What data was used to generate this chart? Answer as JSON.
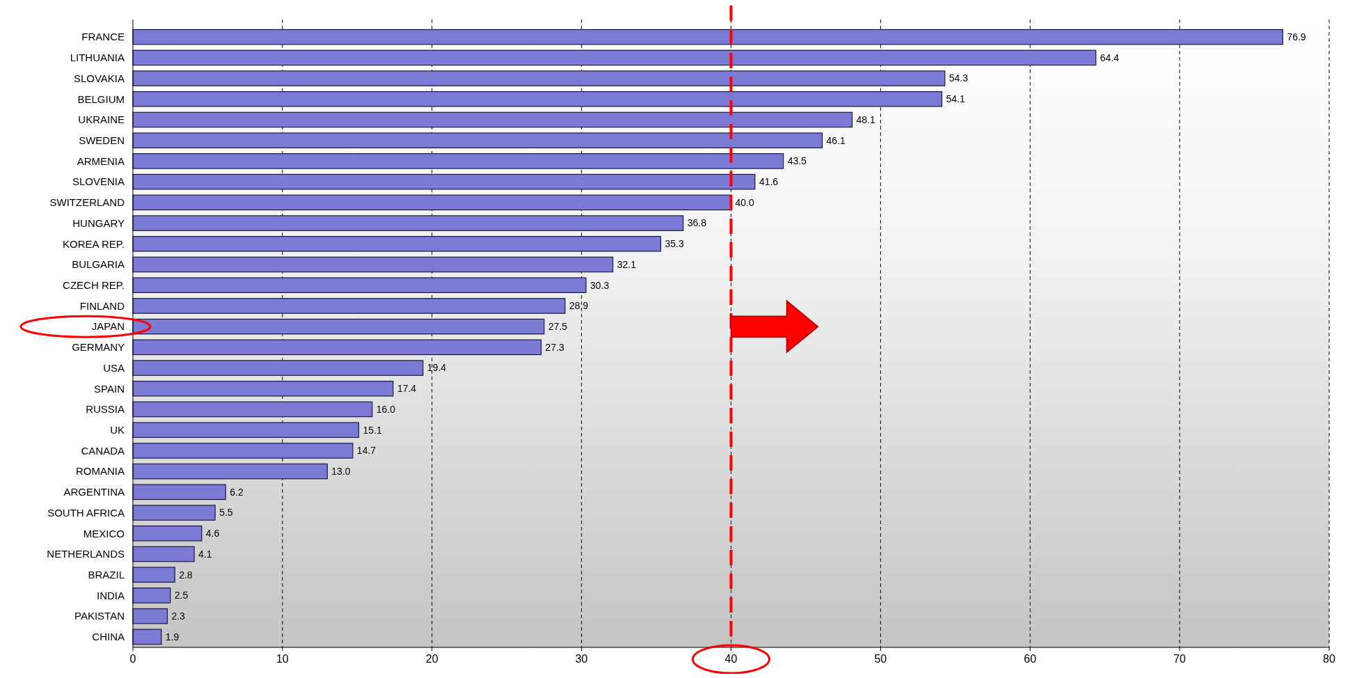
{
  "chart_data": {
    "type": "bar",
    "orientation": "horizontal",
    "categories": [
      "FRANCE",
      "LITHUANIA",
      "SLOVAKIA",
      "BELGIUM",
      "UKRAINE",
      "SWEDEN",
      "ARMENIA",
      "SLOVENIA",
      "SWITZERLAND",
      "HUNGARY",
      "KOREA REP.",
      "BULGARIA",
      "CZECH REP.",
      "FINLAND",
      "JAPAN",
      "GERMANY",
      "USA",
      "SPAIN",
      "RUSSIA",
      "UK",
      "CANADA",
      "ROMANIA",
      "ARGENTINA",
      "SOUTH AFRICA",
      "MEXICO",
      "NETHERLANDS",
      "BRAZIL",
      "INDIA",
      "PAKISTAN",
      "CHINA"
    ],
    "values": [
      76.9,
      64.4,
      54.3,
      54.1,
      48.1,
      46.1,
      43.5,
      41.6,
      40.0,
      36.8,
      35.3,
      32.1,
      30.3,
      28.9,
      27.5,
      27.3,
      19.4,
      17.4,
      16.0,
      15.1,
      14.7,
      13.0,
      6.2,
      5.5,
      4.6,
      4.1,
      2.8,
      2.5,
      2.3,
      1.9
    ],
    "value_labels": [
      "76.9",
      "64.4",
      "54.3",
      "54.1",
      "48.1",
      "46.1",
      "43.5",
      "41.6",
      "40.0",
      "36.8",
      "35.3",
      "32.1",
      "30.3",
      "28.9",
      "27.5",
      "27.3",
      "19.4",
      "17.4",
      "16.0",
      "15.1",
      "14.7",
      "13.0",
      "6.2",
      "5.5",
      "4.6",
      "4.1",
      "2.8",
      "2.5",
      "2.3",
      "1.9"
    ],
    "color": "#7b7bd6",
    "xlim": [
      0,
      80
    ],
    "xticks": [
      0,
      10,
      20,
      30,
      40,
      50,
      60,
      70,
      80
    ],
    "grid": "x",
    "ref_lines": [
      {
        "axis": "x",
        "value": 40,
        "color": "#ff0000",
        "line_style": "dashed"
      }
    ]
  }
}
